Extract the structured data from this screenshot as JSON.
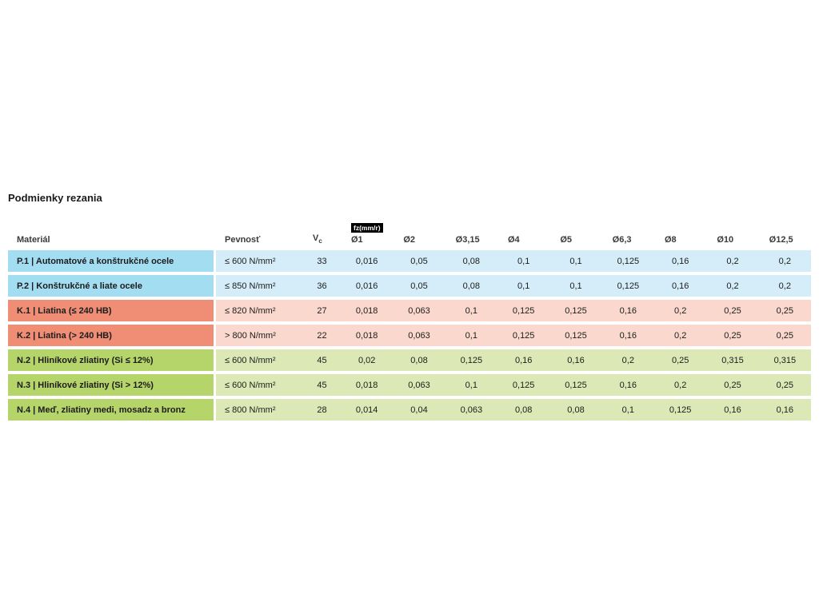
{
  "page": {
    "title": "Podmienky rezania"
  },
  "table": {
    "headers": {
      "material": "Materiál",
      "strength": "Pevnosť",
      "vc_label": "V",
      "vc_sub": "c",
      "fz_badge": "fz(mm/r)",
      "diameters": [
        "Ø1",
        "Ø2",
        "Ø3,15",
        "Ø4",
        "Ø5",
        "Ø6,3",
        "Ø8",
        "Ø10",
        "Ø12,5"
      ]
    },
    "colors": {
      "p_label": "#a3ddf2",
      "p_cell": "#d4edf9",
      "k_label": "#ef8e74",
      "k_cell": "#fad8cd",
      "n_label": "#b5d469",
      "n_cell": "#dce9b6"
    },
    "rows": [
      {
        "group": "P",
        "material": "P.1 | Automatové a konštrukčné ocele",
        "strength": "≤ 600 N/mm²",
        "vc": "33",
        "values": [
          "0,016",
          "0,05",
          "0,08",
          "0,1",
          "0,1",
          "0,125",
          "0,16",
          "0,2",
          "0,2"
        ]
      },
      {
        "group": "P",
        "material": "P.2 | Konštrukčné a liate ocele",
        "strength": "≤ 850 N/mm²",
        "vc": "36",
        "values": [
          "0,016",
          "0,05",
          "0,08",
          "0,1",
          "0,1",
          "0,125",
          "0,16",
          "0,2",
          "0,2"
        ]
      },
      {
        "group": "K",
        "material": "K.1 | Liatina (≤ 240 HB)",
        "strength": "≤ 820 N/mm²",
        "vc": "27",
        "values": [
          "0,018",
          "0,063",
          "0,1",
          "0,125",
          "0,125",
          "0,16",
          "0,2",
          "0,25",
          "0,25"
        ]
      },
      {
        "group": "K",
        "material": "K.2 | Liatina (> 240 HB)",
        "strength": "> 800 N/mm²",
        "vc": "22",
        "values": [
          "0,018",
          "0,063",
          "0,1",
          "0,125",
          "0,125",
          "0,16",
          "0,2",
          "0,25",
          "0,25"
        ]
      },
      {
        "group": "N",
        "material": "N.2 | Hliníkové zliatiny (Si ≤ 12%)",
        "strength": "≤ 600 N/mm²",
        "vc": "45",
        "values": [
          "0,02",
          "0,08",
          "0,125",
          "0,16",
          "0,16",
          "0,2",
          "0,25",
          "0,315",
          "0,315"
        ]
      },
      {
        "group": "N",
        "material": "N.3 | Hliníkové zliatiny (Si > 12%)",
        "strength": "≤ 600 N/mm²",
        "vc": "45",
        "values": [
          "0,018",
          "0,063",
          "0,1",
          "0,125",
          "0,125",
          "0,16",
          "0,2",
          "0,25",
          "0,25"
        ]
      },
      {
        "group": "N",
        "material": "N.4 | Meď, zliatiny medi, mosadz a bronz",
        "strength": "≤ 800 N/mm²",
        "vc": "28",
        "values": [
          "0,014",
          "0,04",
          "0,063",
          "0,08",
          "0,08",
          "0,1",
          "0,125",
          "0,16",
          "0,16"
        ]
      }
    ]
  }
}
